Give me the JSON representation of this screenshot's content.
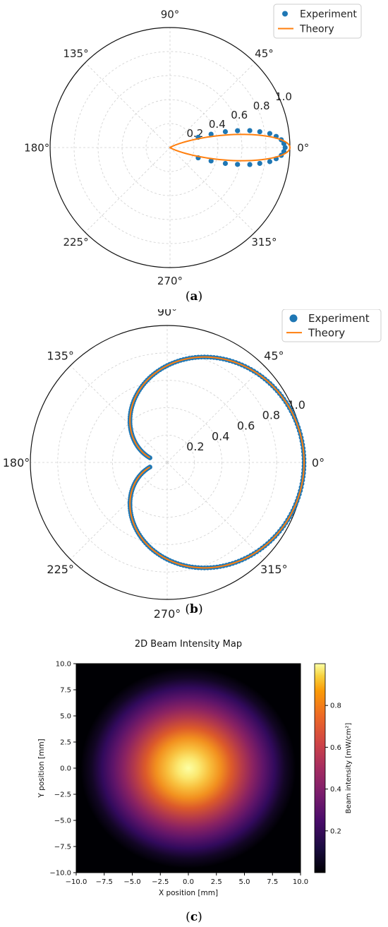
{
  "captions": [
    "(a)",
    "(b)",
    "(c)"
  ],
  "legend": {
    "experiment": "Experiment",
    "theory": "Theory"
  },
  "chart_data": [
    {
      "type": "polar-scatter-line",
      "panel": "(a)",
      "angle_ticks": [
        "0°",
        "45°",
        "90°",
        "135°",
        "180°",
        "225°",
        "270°",
        "315°"
      ],
      "radial_ticks": [
        "0.2",
        "0.4",
        "0.6",
        "0.8",
        "1.0"
      ],
      "rlim": [
        0,
        1.0
      ],
      "grid": true,
      "legend_placement": "top-right",
      "series": [
        {
          "name": "Experiment",
          "style": "dots",
          "color": "#1f77b4",
          "theta_deg": [
            -20,
            -18,
            -16,
            -14,
            -12,
            -10,
            -8,
            -6,
            -4,
            -2,
            0,
            2,
            4,
            6,
            8,
            10,
            12,
            14,
            16,
            18,
            20
          ],
          "r": [
            0.25,
            0.36,
            0.48,
            0.58,
            0.68,
            0.76,
            0.84,
            0.89,
            0.93,
            0.95,
            0.96,
            0.95,
            0.93,
            0.89,
            0.84,
            0.76,
            0.68,
            0.58,
            0.48,
            0.36,
            0.25
          ]
        },
        {
          "name": "Theory",
          "style": "line",
          "color": "#ff7f0e",
          "equation": "r = cos(theta)^30",
          "theta_range_deg": [
            -90,
            90
          ]
        }
      ]
    },
    {
      "type": "polar-scatter-line",
      "panel": "(b)",
      "angle_ticks": [
        "0°",
        "45°",
        "90°",
        "135°",
        "180°",
        "225°",
        "270°",
        "315°"
      ],
      "radial_ticks": [
        "0.2",
        "0.4",
        "0.6",
        "0.8",
        "1.0"
      ],
      "rlim": [
        0,
        1.0
      ],
      "grid": true,
      "legend_placement": "top-right",
      "series": [
        {
          "name": "Experiment",
          "style": "dots",
          "color": "#1f77b4",
          "equation": "r = cos(theta/2)",
          "theta_range_deg": [
            -165,
            165
          ]
        },
        {
          "name": "Theory",
          "style": "line",
          "color": "#ff7f0e",
          "equation": "r = cos(theta/2)",
          "theta_range_deg": [
            -165,
            165
          ]
        }
      ]
    },
    {
      "type": "heatmap",
      "panel": "(c)",
      "title": "2D Beam Intensity Map",
      "xlabel": "X position [mm]",
      "ylabel": "Y position [mm]",
      "colorbar_label": "Beam intensity [mW/cm²]",
      "xlim": [
        -10,
        10
      ],
      "ylim": [
        -10,
        10
      ],
      "x_ticks": [
        "−10.0",
        "−7.5",
        "−5.0",
        "−2.5",
        "0.0",
        "2.5",
        "5.0",
        "7.5",
        "10.0"
      ],
      "y_ticks": [
        "10.0",
        "7.5",
        "5.0",
        "2.5",
        "0.0",
        "−2.5",
        "−5.0",
        "−7.5",
        "−10.0"
      ],
      "colorbar_ticks": [
        "0.8",
        "0.6",
        "0.4",
        "0.2"
      ],
      "colorbar_range": [
        0,
        1.0
      ],
      "colormap": "inferno",
      "peak_center": [
        0,
        0
      ],
      "peak_value": 1.0,
      "gaussian_sigma_mm": 3.2
    }
  ]
}
